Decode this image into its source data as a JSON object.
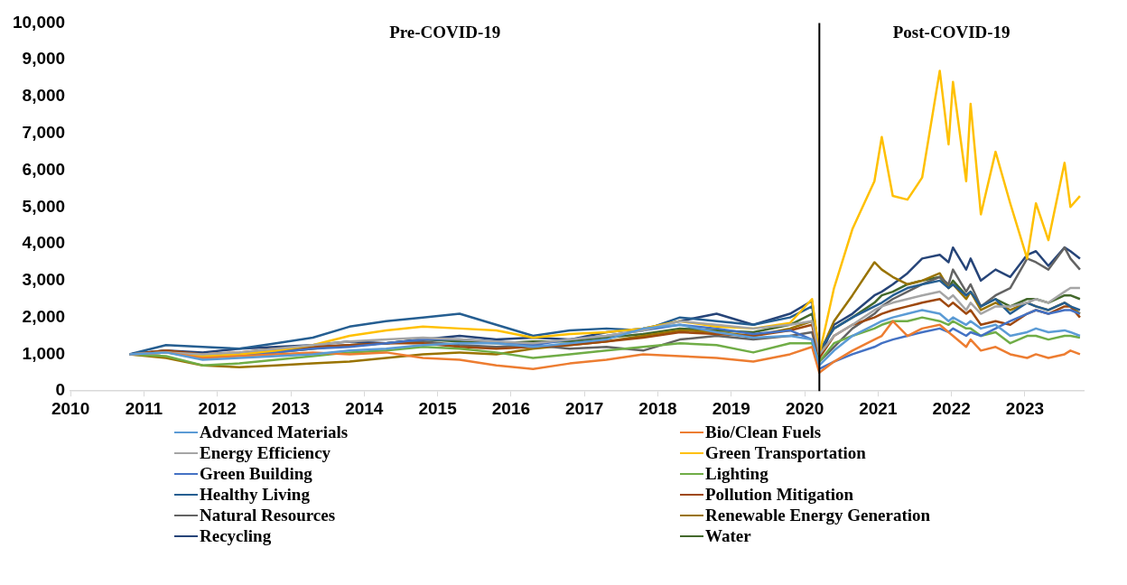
{
  "chart_data": {
    "type": "line",
    "x": [
      2010.8,
      2011.3,
      2011.8,
      2012.3,
      2012.8,
      2013.3,
      2013.8,
      2014.3,
      2014.8,
      2015.3,
      2015.8,
      2016.3,
      2016.8,
      2017.3,
      2017.8,
      2018.3,
      2018.8,
      2019.3,
      2019.8,
      2020.1,
      2020.2,
      2020.4,
      2020.65,
      2020.95,
      2021.05,
      2021.2,
      2021.4,
      2021.6,
      2021.84,
      2021.96,
      2022.02,
      2022.2,
      2022.26,
      2022.4,
      2022.6,
      2022.8,
      2023.03,
      2023.15,
      2023.32,
      2023.54,
      2023.62,
      2023.75
    ],
    "series": [
      {
        "name": "Advanced Materials",
        "color": "#5b9bd5",
        "values": [
          1000,
          1050,
          850,
          900,
          950,
          1000,
          1100,
          1150,
          1250,
          1300,
          1300,
          1200,
          1300,
          1400,
          1700,
          1800,
          1600,
          1450,
          1500,
          1400,
          700,
          1100,
          1500,
          1800,
          1900,
          2000,
          2100,
          2200,
          2100,
          1900,
          2000,
          1800,
          1900,
          1700,
          1800,
          1500,
          1600,
          1700,
          1600,
          1650,
          1600,
          1500
        ]
      },
      {
        "name": "Bio/Clean Fuels",
        "color": "#ed7d31",
        "values": [
          1000,
          1050,
          900,
          950,
          1000,
          1050,
          1000,
          1050,
          900,
          850,
          700,
          600,
          750,
          850,
          1000,
          950,
          900,
          800,
          1000,
          1200,
          500,
          800,
          1100,
          1400,
          1500,
          1900,
          1500,
          1700,
          1800,
          1600,
          1500,
          1200,
          1400,
          1100,
          1200,
          1000,
          900,
          1000,
          900,
          1000,
          1100,
          1000
        ]
      },
      {
        "name": "Energy Efficiency",
        "color": "#a5a5a5",
        "values": [
          1000,
          1050,
          1000,
          1050,
          1150,
          1250,
          1350,
          1400,
          1450,
          1400,
          1350,
          1300,
          1400,
          1500,
          1650,
          1900,
          1800,
          1700,
          1800,
          1900,
          1000,
          1500,
          1800,
          2200,
          2300,
          2400,
          2500,
          2600,
          2700,
          2500,
          2600,
          2200,
          2400,
          2100,
          2300,
          2300,
          2400,
          2500,
          2400,
          2700,
          2800,
          2800
        ]
      },
      {
        "name": "Green Transportation",
        "color": "#ffc000",
        "values": [
          1000,
          1050,
          950,
          1000,
          1100,
          1250,
          1500,
          1650,
          1750,
          1700,
          1650,
          1450,
          1550,
          1600,
          1700,
          1900,
          1750,
          1700,
          1850,
          2500,
          1000,
          2800,
          4400,
          5700,
          6900,
          5300,
          5200,
          5800,
          8700,
          6700,
          8400,
          5700,
          7800,
          4800,
          6500,
          5100,
          3600,
          5100,
          4100,
          6200,
          5000,
          5300
        ]
      },
      {
        "name": "Green Building",
        "color": "#4472c4",
        "values": [
          1000,
          1050,
          950,
          1000,
          1050,
          1150,
          1200,
          1300,
          1400,
          1400,
          1350,
          1250,
          1400,
          1500,
          1650,
          1800,
          1700,
          1550,
          1650,
          1400,
          600,
          800,
          1000,
          1200,
          1300,
          1400,
          1500,
          1600,
          1700,
          1600,
          1700,
          1500,
          1600,
          1500,
          1700,
          1900,
          2100,
          2200,
          2100,
          2200,
          2200,
          2100
        ]
      },
      {
        "name": "Lighting",
        "color": "#70ad47",
        "values": [
          1000,
          950,
          700,
          750,
          850,
          950,
          1050,
          1100,
          1200,
          1150,
          1050,
          900,
          1000,
          1100,
          1200,
          1300,
          1250,
          1050,
          1300,
          1300,
          800,
          1300,
          1500,
          1700,
          1800,
          1900,
          1900,
          2000,
          1900,
          1800,
          1900,
          1700,
          1700,
          1500,
          1600,
          1300,
          1500,
          1500,
          1400,
          1500,
          1500,
          1450
        ]
      },
      {
        "name": "Healthy Living",
        "color": "#255e91",
        "values": [
          1000,
          1250,
          1200,
          1150,
          1300,
          1450,
          1750,
          1900,
          2000,
          2100,
          1800,
          1500,
          1650,
          1700,
          1650,
          2000,
          1900,
          1800,
          2000,
          2300,
          1100,
          1700,
          2000,
          2300,
          2400,
          2600,
          2800,
          2900,
          3000,
          2800,
          2900,
          2600,
          2700,
          2300,
          2500,
          2100,
          2400,
          2300,
          2200,
          2400,
          2300,
          2200
        ]
      },
      {
        "name": "Pollution Mitigation",
        "color": "#9e480e",
        "values": [
          1000,
          1100,
          1000,
          1050,
          1150,
          1200,
          1250,
          1300,
          1300,
          1200,
          1150,
          1200,
          1250,
          1350,
          1450,
          1600,
          1550,
          1500,
          1650,
          1800,
          900,
          1500,
          1800,
          2000,
          2100,
          2200,
          2300,
          2400,
          2500,
          2300,
          2400,
          2100,
          2200,
          1800,
          1900,
          1800,
          2100,
          2200,
          2100,
          2300,
          2300,
          2000
        ]
      },
      {
        "name": "Natural Resources",
        "color": "#636363",
        "values": [
          1000,
          1100,
          900,
          1000,
          1100,
          1200,
          1250,
          1300,
          1350,
          1250,
          1200,
          1250,
          1150,
          1200,
          1100,
          1400,
          1500,
          1400,
          1500,
          1600,
          800,
          1200,
          1700,
          2100,
          2300,
          2500,
          2700,
          2900,
          3100,
          2900,
          3300,
          2700,
          2900,
          2300,
          2600,
          2800,
          3600,
          3500,
          3300,
          3900,
          3600,
          3300
        ]
      },
      {
        "name": "Renewable Energy Generation",
        "color": "#997300",
        "values": [
          1000,
          900,
          700,
          650,
          700,
          750,
          800,
          900,
          1000,
          1050,
          1000,
          1150,
          1250,
          1350,
          1500,
          1650,
          1600,
          1500,
          1700,
          1900,
          1000,
          1900,
          2600,
          3500,
          3300,
          3100,
          2900,
          3000,
          3200,
          2800,
          2900,
          2500,
          2700,
          2200,
          2400,
          2200,
          2400,
          2300,
          2200,
          2400,
          2300,
          2100
        ]
      },
      {
        "name": "Recycling",
        "color": "#264478",
        "values": [
          1000,
          1100,
          1050,
          1150,
          1200,
          1250,
          1350,
          1300,
          1400,
          1500,
          1400,
          1450,
          1400,
          1600,
          1700,
          1900,
          2100,
          1800,
          2100,
          2450,
          900,
          1800,
          2100,
          2600,
          2700,
          2900,
          3200,
          3600,
          3700,
          3500,
          3900,
          3300,
          3600,
          3000,
          3300,
          3100,
          3700,
          3800,
          3400,
          3900,
          3800,
          3600
        ]
      },
      {
        "name": "Water",
        "color": "#43682b",
        "values": [
          1000,
          1050,
          950,
          1000,
          1050,
          1150,
          1250,
          1300,
          1400,
          1350,
          1300,
          1350,
          1350,
          1450,
          1550,
          1700,
          1650,
          1600,
          1800,
          2100,
          1100,
          1700,
          2000,
          2400,
          2600,
          2700,
          2900,
          3000,
          3100,
          2800,
          3000,
          2600,
          2700,
          2300,
          2500,
          2300,
          2500,
          2500,
          2400,
          2600,
          2600,
          2500
        ]
      }
    ],
    "xlim": [
      2010,
      2023.8
    ],
    "xticks": [
      2010,
      2011,
      2012,
      2013,
      2014,
      2015,
      2016,
      2017,
      2018,
      2019,
      2020,
      2021,
      2022,
      2023
    ],
    "ylim": [
      0,
      10000
    ],
    "yticks": [
      {
        "value": 0,
        "label": "0"
      },
      {
        "value": 1000,
        "label": "1,000"
      },
      {
        "value": 2000,
        "label": "2,000"
      },
      {
        "value": 3000,
        "label": "3,000"
      },
      {
        "value": 4000,
        "label": "4,000"
      },
      {
        "value": 5000,
        "label": "5,000"
      },
      {
        "value": 6000,
        "label": "6,000"
      },
      {
        "value": 7000,
        "label": "7,000"
      },
      {
        "value": 8000,
        "label": "8,000"
      },
      {
        "value": 9000,
        "label": "9,000"
      },
      {
        "value": 10000,
        "label": "10,000"
      }
    ],
    "ref_lines": [
      {
        "axis": "x",
        "value": 2020.2,
        "color": "#000000"
      }
    ],
    "annotations": [
      "Pre-COVID-19",
      "Post-COVID-19"
    ],
    "grid": false,
    "legend": "bottom",
    "marker": "none",
    "line_style": "solid"
  }
}
